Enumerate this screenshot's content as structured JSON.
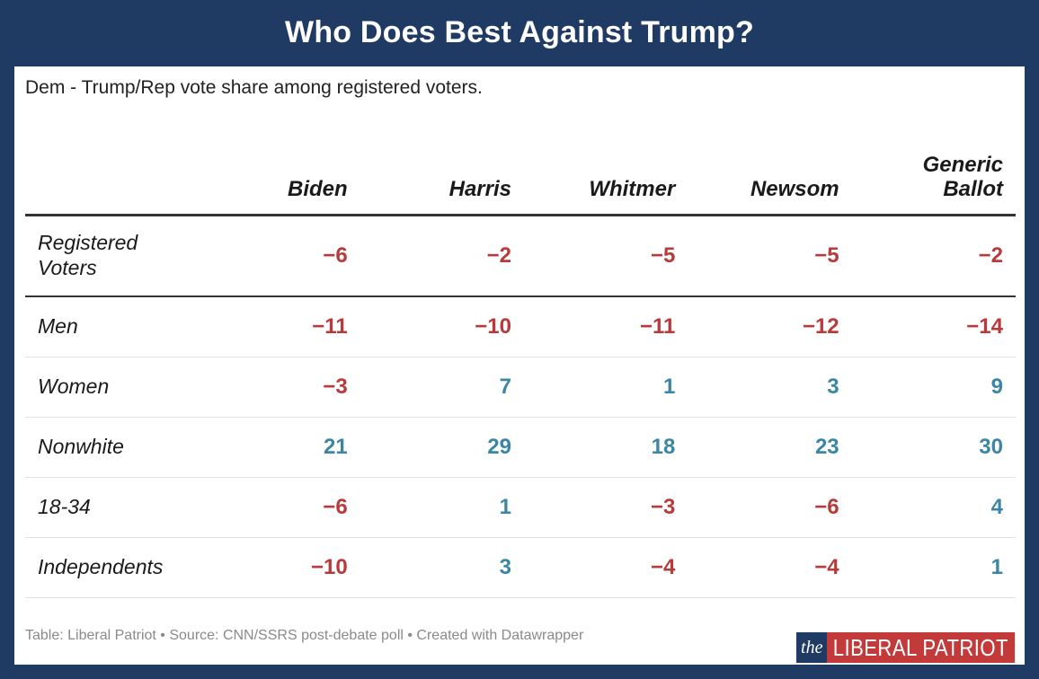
{
  "title": "Who Does Best Against Trump?",
  "subtitle": "Dem - Trump/Rep vote share among registered voters.",
  "footer": "Table: Liberal Patriot • Source: CNN/SSRS post-debate poll • Created with Datawrapper",
  "logo": {
    "the": "the",
    "name": "LIBERAL PATRIOT"
  },
  "colors": {
    "frame": "#1f3a63",
    "negative": "#b83a3a",
    "positive": "#3a86a4",
    "logo_red": "#c23a3a"
  },
  "chart_data": {
    "type": "table",
    "title": "Who Does Best Against Trump?",
    "subtitle": "Dem - Trump/Rep vote share among registered voters.",
    "columns": [
      "Biden",
      "Harris",
      "Whitmer",
      "Newsom",
      "Generic Ballot"
    ],
    "column_lines": [
      [
        "Biden"
      ],
      [
        "Harris"
      ],
      [
        "Whitmer"
      ],
      [
        "Newsom"
      ],
      [
        "Generic",
        "Ballot"
      ]
    ],
    "rows": [
      {
        "label_lines": [
          "Registered",
          "Voters"
        ],
        "label": "Registered Voters",
        "values": [
          -6,
          -2,
          -5,
          -5,
          -2
        ]
      },
      {
        "label_lines": [
          "Men"
        ],
        "label": "Men",
        "values": [
          -11,
          -10,
          -11,
          -12,
          -14
        ]
      },
      {
        "label_lines": [
          "Women"
        ],
        "label": "Women",
        "values": [
          -3,
          7,
          1,
          3,
          9
        ]
      },
      {
        "label_lines": [
          "Nonwhite"
        ],
        "label": "Nonwhite",
        "values": [
          21,
          29,
          18,
          23,
          30
        ]
      },
      {
        "label_lines": [
          "18-34"
        ],
        "label": "18-34",
        "values": [
          -6,
          1,
          -3,
          -6,
          4
        ]
      },
      {
        "label_lines": [
          "Independents"
        ],
        "label": "Independents",
        "values": [
          -10,
          3,
          -4,
          -4,
          1
        ]
      }
    ]
  }
}
